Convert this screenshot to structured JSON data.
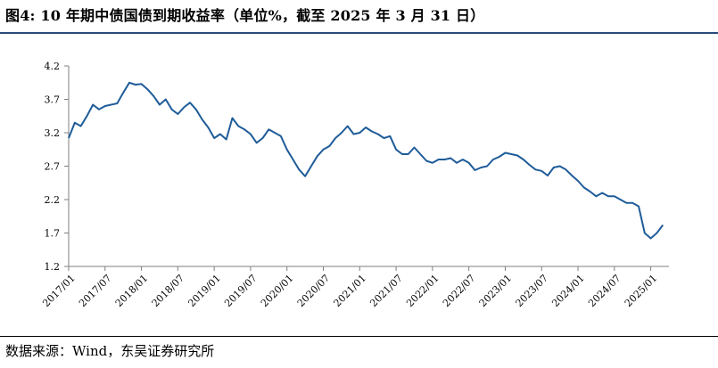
{
  "title": "图4:  10 年期中债国债到期收益率（单位%，截至 2025 年 3 月 31 日）",
  "source": "数据来源：Wind，东吴证券研究所",
  "colors": {
    "line": "#1f5c99",
    "axis": "#808080",
    "title_rule": "#2a4a7b"
  },
  "chart_data": {
    "type": "line",
    "title": "图4:  10 年期中债国债到期收益率（单位%，截至 2025 年 3 月 31 日）",
    "xlabel": "",
    "ylabel": "",
    "ylim": [
      1.2,
      4.2
    ],
    "yticks": [
      "1.2",
      "1.7",
      "2.2",
      "2.7",
      "3.2",
      "3.7",
      "4.2"
    ],
    "xlim": [
      "2017/01",
      "2025/04"
    ],
    "xticks": [
      "2017/01",
      "2017/07",
      "2018/01",
      "2018/07",
      "2019/01",
      "2019/07",
      "2020/01",
      "2020/07",
      "2021/01",
      "2021/07",
      "2022/01",
      "2022/07",
      "2023/01",
      "2023/07",
      "2024/01",
      "2024/07",
      "2025/01"
    ],
    "grid": false,
    "legend": "none",
    "series": [
      {
        "x": [
          "2017/01",
          "2017/02",
          "2017/03",
          "2017/04",
          "2017/05",
          "2017/06",
          "2017/07",
          "2017/08",
          "2017/09",
          "2017/10",
          "2017/11",
          "2017/12",
          "2018/01",
          "2018/02",
          "2018/03",
          "2018/04",
          "2018/05",
          "2018/06",
          "2018/07",
          "2018/08",
          "2018/09",
          "2018/10",
          "2018/11",
          "2018/12",
          "2019/01",
          "2019/02",
          "2019/03",
          "2019/04",
          "2019/05",
          "2019/06",
          "2019/07",
          "2019/08",
          "2019/09",
          "2019/10",
          "2019/11",
          "2019/12",
          "2020/01",
          "2020/02",
          "2020/03",
          "2020/04",
          "2020/05",
          "2020/06",
          "2020/07",
          "2020/08",
          "2020/09",
          "2020/10",
          "2020/11",
          "2020/12",
          "2021/01",
          "2021/02",
          "2021/03",
          "2021/04",
          "2021/05",
          "2021/06",
          "2021/07",
          "2021/08",
          "2021/09",
          "2021/10",
          "2021/11",
          "2021/12",
          "2022/01",
          "2022/02",
          "2022/03",
          "2022/04",
          "2022/05",
          "2022/06",
          "2022/07",
          "2022/08",
          "2022/09",
          "2022/10",
          "2022/11",
          "2022/12",
          "2023/01",
          "2023/02",
          "2023/03",
          "2023/04",
          "2023/05",
          "2023/06",
          "2023/07",
          "2023/08",
          "2023/09",
          "2023/10",
          "2023/11",
          "2023/12",
          "2024/01",
          "2024/02",
          "2024/03",
          "2024/04",
          "2024/05",
          "2024/06",
          "2024/07",
          "2024/08",
          "2024/09",
          "2024/10",
          "2024/11",
          "2024/12",
          "2025/01",
          "2025/02",
          "2025/03"
        ],
        "values": [
          3.12,
          3.35,
          3.3,
          3.45,
          3.62,
          3.55,
          3.6,
          3.62,
          3.64,
          3.8,
          3.95,
          3.92,
          3.93,
          3.85,
          3.75,
          3.62,
          3.7,
          3.55,
          3.48,
          3.58,
          3.65,
          3.55,
          3.4,
          3.28,
          3.12,
          3.18,
          3.1,
          3.42,
          3.3,
          3.25,
          3.18,
          3.05,
          3.12,
          3.25,
          3.2,
          3.15,
          2.95,
          2.8,
          2.65,
          2.55,
          2.7,
          2.85,
          2.95,
          3.0,
          3.12,
          3.2,
          3.3,
          3.18,
          3.2,
          3.28,
          3.22,
          3.18,
          3.12,
          3.15,
          2.95,
          2.88,
          2.88,
          2.98,
          2.88,
          2.78,
          2.75,
          2.8,
          2.8,
          2.82,
          2.75,
          2.8,
          2.75,
          2.64,
          2.68,
          2.7,
          2.8,
          2.84,
          2.9,
          2.88,
          2.86,
          2.8,
          2.72,
          2.65,
          2.63,
          2.56,
          2.68,
          2.7,
          2.65,
          2.56,
          2.48,
          2.38,
          2.32,
          2.25,
          2.3,
          2.25,
          2.25,
          2.2,
          2.15,
          2.15,
          2.1,
          1.7,
          1.62,
          1.7,
          1.82
        ]
      }
    ]
  }
}
